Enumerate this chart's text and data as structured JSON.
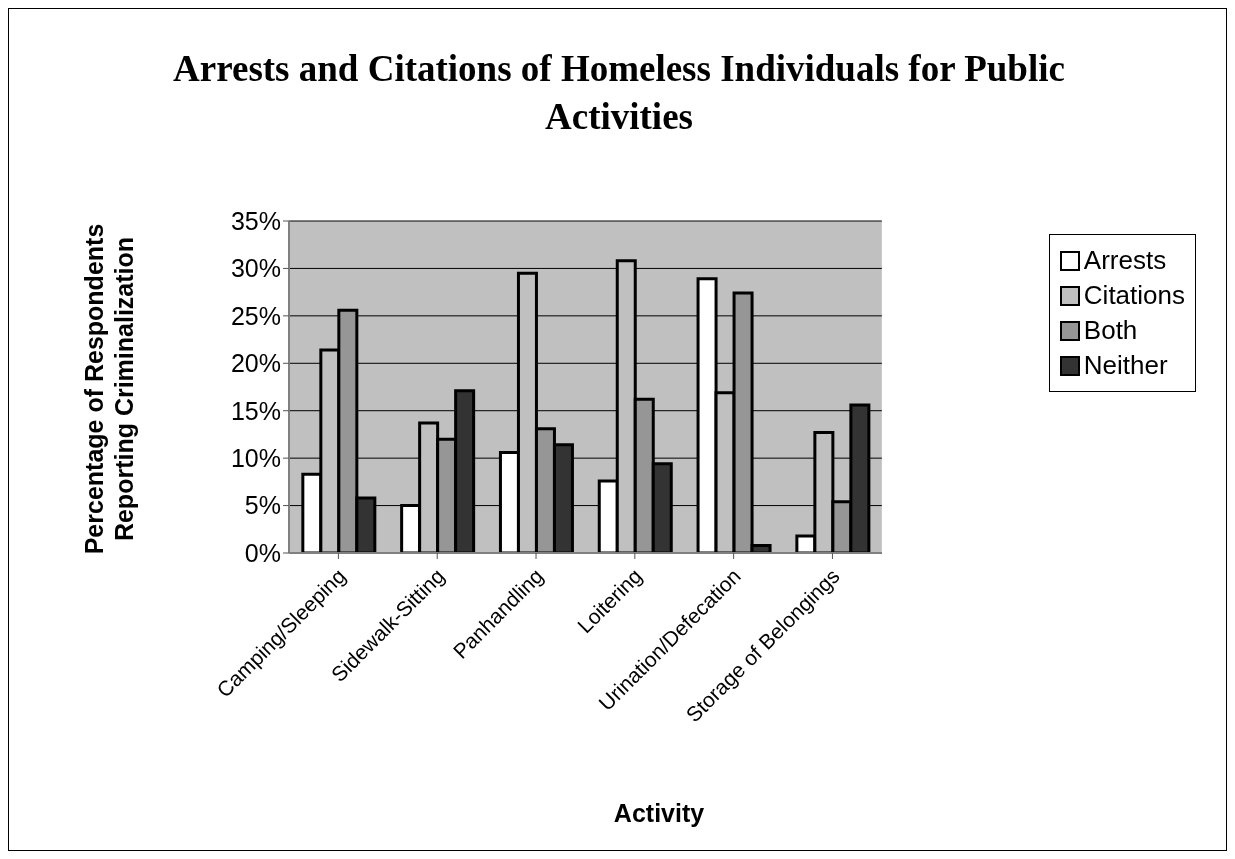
{
  "chart_data": {
    "type": "bar",
    "title": "Arrests and Citations of Homeless Individuals for Public Activities",
    "xlabel": "Activity",
    "ylabel": "Percentage of Respondents Reporting Criminalization",
    "categories": [
      "Camping/Sleeping",
      "Sidewalk-Sitting",
      "Panhandling",
      "Loitering",
      "Urination/Defecation",
      "Storage of Belongings"
    ],
    "series": [
      {
        "name": "Arrests",
        "color": "#ffffff",
        "values": [
          8.3,
          5.0,
          10.6,
          7.6,
          28.9,
          1.8
        ]
      },
      {
        "name": "Citations",
        "color": "#c0c0c0",
        "values": [
          21.4,
          13.7,
          29.5,
          30.8,
          16.9,
          12.7
        ]
      },
      {
        "name": "Both",
        "color": "#969696",
        "values": [
          25.6,
          12.0,
          13.1,
          16.2,
          27.4,
          5.4
        ]
      },
      {
        "name": "Neither",
        "color": "#333333",
        "values": [
          5.8,
          17.1,
          11.4,
          9.4,
          0.8,
          15.6
        ]
      }
    ],
    "ylim": [
      0,
      35
    ],
    "yticks": [
      {
        "value": 0,
        "label": "0%"
      },
      {
        "value": 5,
        "label": "5%"
      },
      {
        "value": 10,
        "label": "10%"
      },
      {
        "value": 15,
        "label": "15%"
      },
      {
        "value": 20,
        "label": "20%"
      },
      {
        "value": 25,
        "label": "25%"
      },
      {
        "value": 30,
        "label": "30%"
      },
      {
        "value": 35,
        "label": "35%"
      }
    ],
    "grid": "y",
    "legend": "right"
  }
}
